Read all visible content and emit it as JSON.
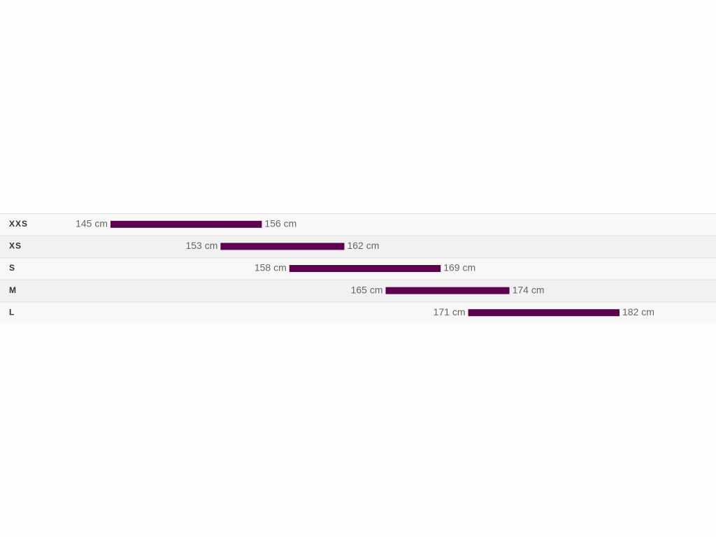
{
  "chart_data": {
    "type": "range_bar",
    "categories": [
      "XXS",
      "XS",
      "S",
      "M",
      "L"
    ],
    "low": {
      "values": [
        145,
        153,
        158,
        165,
        171
      ],
      "value_labels": [
        "145 cm",
        "153 cm",
        "158 cm",
        "165 cm",
        "171 cm"
      ]
    },
    "high": {
      "values": [
        156,
        162,
        169,
        174,
        182
      ],
      "value_labels": [
        "156 cm",
        "162 cm",
        "169 cm",
        "174 cm",
        "182 cm"
      ]
    },
    "color": "#5c0050"
  }
}
